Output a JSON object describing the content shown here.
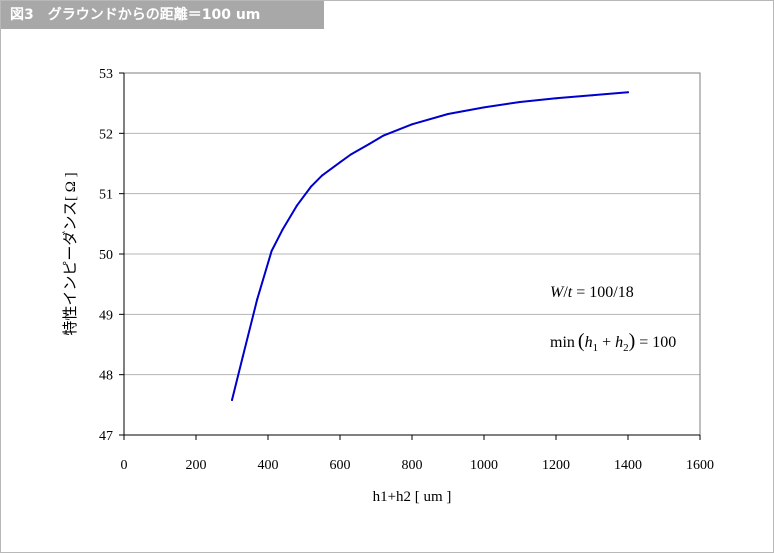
{
  "figure_title": "図3　グラウンドからの距離＝100 um",
  "chart_data": {
    "type": "line",
    "title": "",
    "xlabel": "h1+h2 [ um ]",
    "ylabel": "特性インピーダンス[ Ω ]",
    "xlim": [
      0,
      1600
    ],
    "ylim": [
      47,
      53
    ],
    "xticks": [
      0,
      200,
      400,
      600,
      800,
      1000,
      1200,
      1400,
      1600
    ],
    "yticks": [
      47,
      48,
      49,
      50,
      51,
      52,
      53
    ],
    "grid": "horizontal",
    "legend": "none",
    "series": [
      {
        "name": "",
        "color": "#0000cc",
        "x": [
          300,
          330,
          370,
          410,
          440,
          480,
          520,
          550,
          600,
          630,
          680,
          720,
          800,
          900,
          1000,
          1100,
          1200,
          1300,
          1400
        ],
        "y": [
          47.58,
          48.3,
          49.25,
          50.05,
          50.4,
          50.8,
          51.12,
          51.3,
          51.52,
          51.65,
          51.82,
          51.96,
          52.15,
          52.32,
          52.43,
          52.52,
          52.58,
          52.63,
          52.68
        ]
      }
    ],
    "annotations": {
      "line1": {
        "W": "W",
        "slash": "/",
        "t": "t",
        "rest": " = 100/18"
      },
      "line2": {
        "min": "min",
        "open": "(",
        "h1": "h",
        "sub1": "1",
        "plus": " + ",
        "h2": "h",
        "sub2": "2",
        "close": ")",
        "rest": " = 100"
      }
    }
  }
}
